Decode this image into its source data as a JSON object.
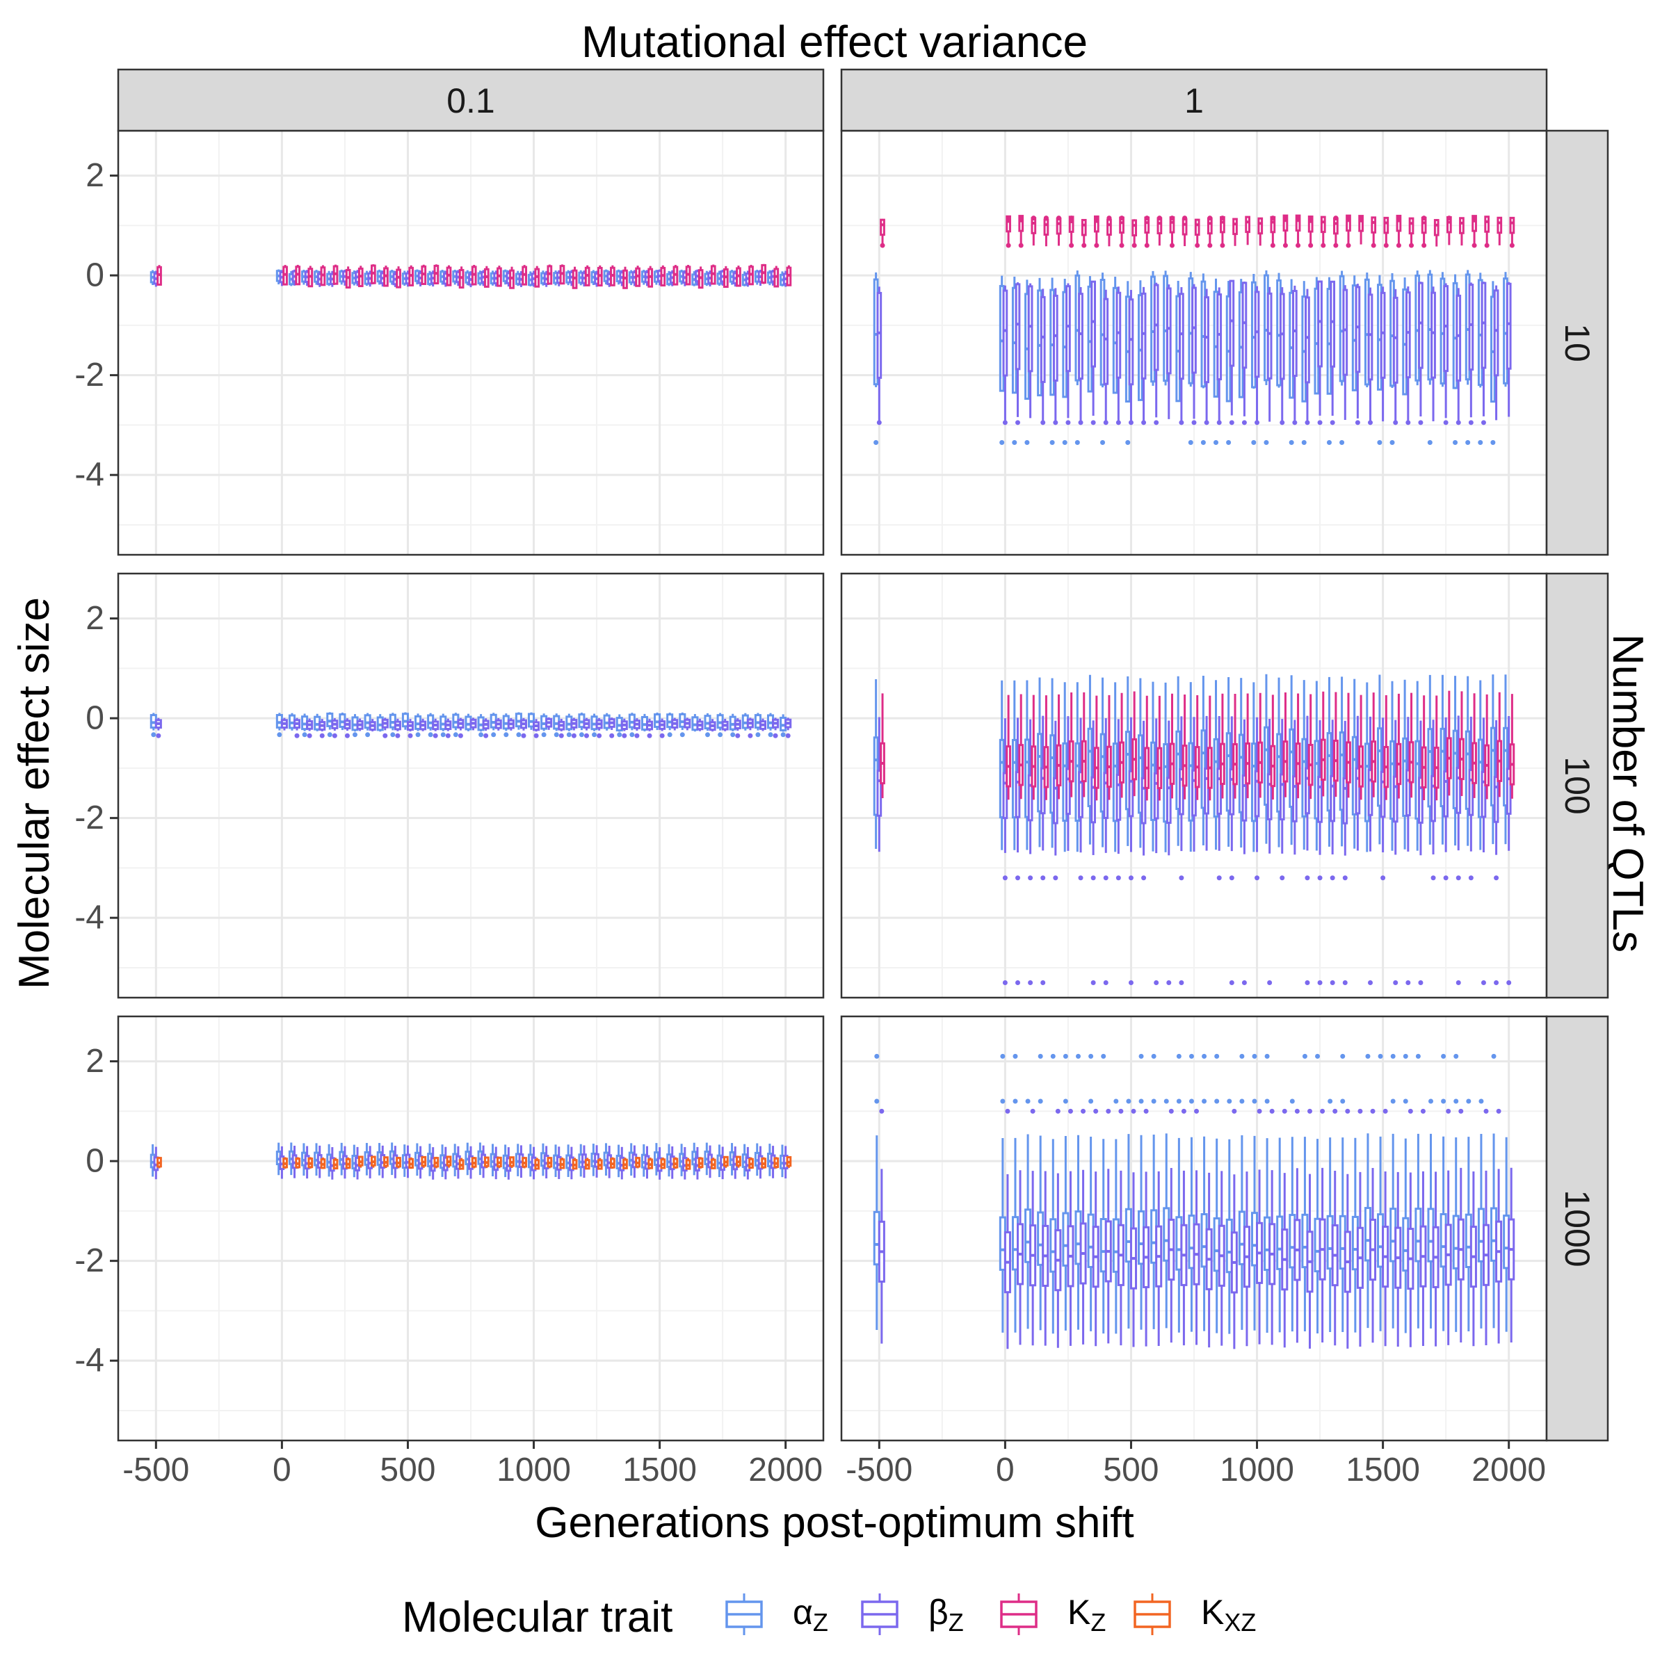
{
  "chart_data": {
    "type": "box",
    "title": "Mutational effect variance",
    "xlabel": "Generations post-optimum shift",
    "ylabel": "Molecular effect size",
    "facet_row_title": "Number of QTLs",
    "column_facets": [
      "0.1",
      "1"
    ],
    "row_facets": [
      "10",
      "100",
      "1000"
    ],
    "x_ticks": [
      "-500",
      "0",
      "500",
      "1000",
      "1500",
      "2000"
    ],
    "x_tick_values": [
      -500,
      0,
      500,
      1000,
      1500,
      2000
    ],
    "y_ticks": [
      "2",
      "0",
      "-2",
      "-4"
    ],
    "y_tick_values": [
      2,
      0,
      -2,
      -4
    ],
    "xlim": [
      -650,
      2150
    ],
    "ylim": [
      -5.6,
      2.9
    ],
    "grid": true,
    "legend_position": "bottom",
    "legend": {
      "title": "Molecular trait",
      "items": [
        {
          "key": "alpha",
          "base": "α",
          "sub": "Z",
          "color": "#6495ED"
        },
        {
          "key": "beta",
          "base": "β",
          "sub": "Z",
          "color": "#7B68EE"
        },
        {
          "key": "K",
          "base": "K",
          "sub": "Z",
          "color": "#DE2D87"
        },
        {
          "key": "KXZ",
          "base": "K",
          "sub": "XZ",
          "color": "#F26522"
        }
      ]
    },
    "series": [
      {
        "name": "αZ",
        "trait": "alpha",
        "color": "#6495ED"
      },
      {
        "name": "βZ",
        "trait": "beta",
        "color": "#7B68EE"
      },
      {
        "name": "KZ",
        "trait": "K",
        "color": "#DE2D87"
      },
      {
        "name": "KXZ",
        "trait": "KXZ",
        "color": "#F26522"
      }
    ],
    "panels": [
      {
        "col": "0.1",
        "row": "10",
        "pre_shift_x": -500,
        "timepoints": "0 to 2000 every 50",
        "boxes": [
          {
            "trait": "alpha",
            "q1": -0.15,
            "median": -0.05,
            "q3": 0.05,
            "lo": -0.2,
            "hi": 0.1
          },
          {
            "trait": "beta",
            "q1": -0.15,
            "median": -0.05,
            "q3": 0.05,
            "lo": -0.22,
            "hi": 0.1
          },
          {
            "trait": "K",
            "q1": -0.2,
            "median": 0.0,
            "q3": 0.15,
            "lo": -0.2,
            "hi": 0.2
          }
        ]
      },
      {
        "col": "0.1",
        "row": "100",
        "pre_shift_x": -500,
        "timepoints": "0 to 2000 every 50",
        "boxes": [
          {
            "trait": "alpha",
            "q1": -0.2,
            "median": -0.1,
            "q3": 0.05,
            "lo": -0.25,
            "hi": 0.1,
            "outliers": [
              -0.33
            ]
          },
          {
            "trait": "beta",
            "q1": -0.2,
            "median": -0.12,
            "q3": -0.05,
            "lo": -0.25,
            "hi": 0.0,
            "outliers": [
              -0.35
            ]
          }
        ]
      },
      {
        "col": "0.1",
        "row": "1000",
        "pre_shift_x": -500,
        "timepoints": "0 to 2000 every 50",
        "boxes": [
          {
            "trait": "alpha",
            "q1": -0.1,
            "median": 0.0,
            "q3": 0.15,
            "lo": -0.3,
            "hi": 0.35
          },
          {
            "trait": "beta",
            "q1": -0.15,
            "median": -0.05,
            "q3": 0.1,
            "lo": -0.35,
            "hi": 0.3
          },
          {
            "trait": "KXZ",
            "q1": -0.12,
            "median": -0.05,
            "q3": 0.05,
            "lo": -0.15,
            "hi": 0.08
          }
        ]
      },
      {
        "col": "1",
        "row": "10",
        "pre_shift_x": -500,
        "timepoints": "0 to 2000 every 50",
        "boxes": [
          {
            "trait": "alpha",
            "q1": -2.3,
            "median": -1.3,
            "q3": -0.2,
            "lo": -2.3,
            "hi": 0.0,
            "outliers": [
              -3.35
            ]
          },
          {
            "trait": "beta",
            "q1": -2.0,
            "median": -1.1,
            "q3": -0.3,
            "lo": -2.9,
            "hi": -0.2,
            "outliers": [
              -2.95
            ]
          },
          {
            "trait": "K",
            "q1": 0.85,
            "median": 1.05,
            "q3": 1.15,
            "lo": 0.6,
            "hi": 1.15,
            "outliers": [
              0.6,
              1.15
            ]
          }
        ]
      },
      {
        "col": "1",
        "row": "100",
        "pre_shift_x": -500,
        "timepoints": "0 to 2000 every 50",
        "boxes": [
          {
            "trait": "alpha",
            "q1": -1.9,
            "median": -0.8,
            "q3": -0.35,
            "lo": -2.6,
            "hi": 0.8
          },
          {
            "trait": "beta",
            "q1": -2.0,
            "median": -1.3,
            "q3": -1.1,
            "lo": -2.7,
            "hi": 0.0,
            "outliers": [
              -3.2,
              -5.3
            ]
          },
          {
            "trait": "K",
            "q1": -1.3,
            "median": -0.9,
            "q3": -0.5,
            "lo": -1.6,
            "hi": 0.5
          }
        ]
      },
      {
        "col": "1",
        "row": "1000",
        "pre_shift_x": -500,
        "timepoints": "0 to 2000 every 50",
        "boxes": [
          {
            "trait": "alpha",
            "q1": -2.1,
            "median": -1.7,
            "q3": -1.05,
            "lo": -3.4,
            "hi": 0.5,
            "outliers": [
              1.2,
              2.1
            ]
          },
          {
            "trait": "beta",
            "q1": -2.5,
            "median": -1.9,
            "q3": -1.3,
            "lo": -3.7,
            "hi": -0.2,
            "outliers": [
              1.0
            ]
          }
        ]
      }
    ]
  }
}
